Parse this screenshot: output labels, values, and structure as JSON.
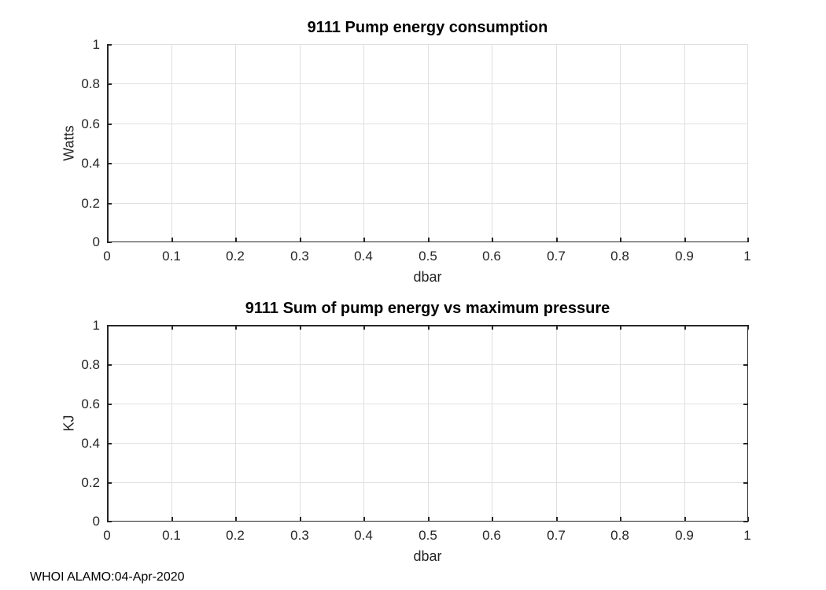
{
  "figure": {
    "background": "#ffffff",
    "credit": "WHOI ALAMO:04-Apr-2020"
  },
  "colors": {
    "axis": "#262626",
    "grid": "#e0e0e0",
    "title": "#000000",
    "tick_label": "#262626"
  },
  "chart_data": [
    {
      "type": "line",
      "title": "9111 Pump energy consumption",
      "xlabel": "dbar",
      "ylabel": "Watts",
      "xlim": [
        0,
        1
      ],
      "ylim": [
        0,
        1
      ],
      "grid": true,
      "box": false,
      "legend": null,
      "xticks": {
        "values": [
          0,
          0.1,
          0.2,
          0.3,
          0.4,
          0.5,
          0.6,
          0.7,
          0.8,
          0.9,
          1
        ],
        "labels": [
          "0",
          "0.1",
          "0.2",
          "0.3",
          "0.4",
          "0.5",
          "0.6",
          "0.7",
          "0.8",
          "0.9",
          "1"
        ]
      },
      "yticks": {
        "values": [
          0,
          0.2,
          0.4,
          0.6,
          0.8,
          1
        ],
        "labels": [
          "0",
          "0.2",
          "0.4",
          "0.6",
          "0.8",
          "1"
        ]
      },
      "series": []
    },
    {
      "type": "line",
      "title": "9111 Sum of pump energy vs maximum pressure",
      "xlabel": "dbar",
      "ylabel": "KJ",
      "xlim": [
        0,
        1
      ],
      "ylim": [
        0,
        1
      ],
      "grid": true,
      "box": true,
      "legend": null,
      "xticks": {
        "values": [
          0,
          0.1,
          0.2,
          0.3,
          0.4,
          0.5,
          0.6,
          0.7,
          0.8,
          0.9,
          1
        ],
        "labels": [
          "0",
          "0.1",
          "0.2",
          "0.3",
          "0.4",
          "0.5",
          "0.6",
          "0.7",
          "0.8",
          "0.9",
          "1"
        ]
      },
      "yticks": {
        "values": [
          0,
          0.2,
          0.4,
          0.6,
          0.8,
          1
        ],
        "labels": [
          "0",
          "0.2",
          "0.4",
          "0.6",
          "0.8",
          "1"
        ]
      },
      "series": []
    }
  ]
}
